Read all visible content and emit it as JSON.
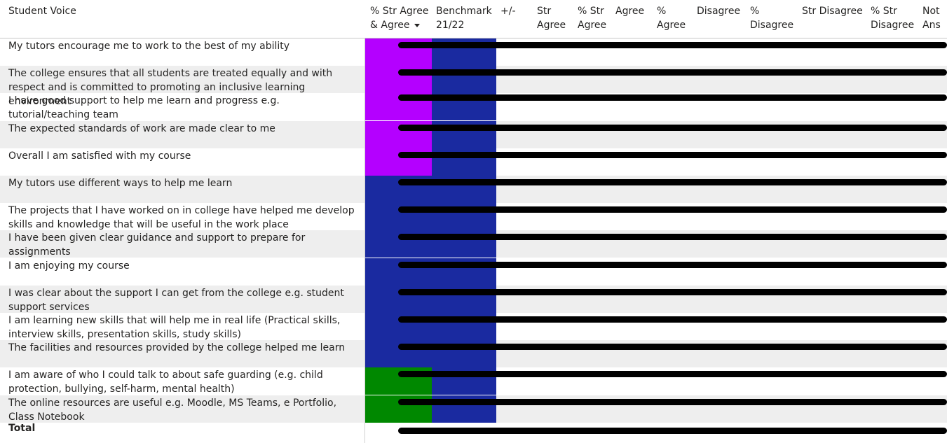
{
  "headers": {
    "question": "Student Voice",
    "str_agree_agree": "% Str Agree & Agree",
    "benchmark": "Benchmark 21/22",
    "delta": "+/-",
    "str_agree": "Str Agree",
    "pct_str_agree": "% Str Agree",
    "agree": "Agree",
    "pct_agree": "% Agree",
    "disagree": "Disagree",
    "pct_disagree": "% Disagree",
    "str_disagree": "Str Disagree",
    "pct_str_disagree": "% Str Disagree",
    "not_ans": "Not Ans"
  },
  "colors": {
    "purple": "#b400ff",
    "blue": "#1a2aa0",
    "green": "#008800"
  },
  "rows": [
    {
      "q": "My tutors encourage me to work to the best of my ability",
      "color": "purple"
    },
    {
      "q": "The college ensures that all students are treated equally and with respect and is committed to promoting an inclusive learning environment",
      "color": "purple"
    },
    {
      "q": "I have good support to help me learn and progress e.g. tutorial/teaching team",
      "color": "purple"
    },
    {
      "q": "The expected standards of work are made clear to me",
      "color": "purple"
    },
    {
      "q": "Overall I am satisfied with my course",
      "color": "purple"
    },
    {
      "q": "My tutors use different ways to help me learn",
      "color": "blue"
    },
    {
      "q": "The projects that I have worked on in college have helped me develop skills and knowledge that will be useful in the work place",
      "color": "blue"
    },
    {
      "q": "I have been given clear guidance and support to prepare for assignments",
      "color": "blue"
    },
    {
      "q": "I am enjoying my course",
      "color": "blue"
    },
    {
      "q": "I was clear about the support I can get from the college e.g. student support services",
      "color": "blue"
    },
    {
      "q": "I am learning new skills that will help me in real life (Practical skills, interview skills, presentation skills, study skills)",
      "color": "blue"
    },
    {
      "q": "The facilities and resources provided by the college helped me learn",
      "color": "blue"
    },
    {
      "q": "I am aware of who I could talk to about safe guarding (e.g. child protection, bullying, self-harm, mental health)",
      "color": "green"
    },
    {
      "q": "The online resources are useful e.g. Moodle, MS Teams, e Portfolio, Class Notebook",
      "color": "green"
    }
  ],
  "total": {
    "label": "Total"
  }
}
